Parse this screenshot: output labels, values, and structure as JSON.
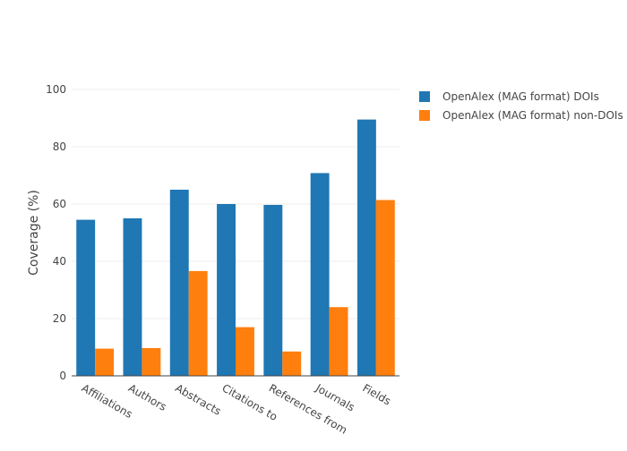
{
  "chart_data": {
    "type": "bar",
    "title": "",
    "xlabel": "",
    "ylabel": "Coverage (%)",
    "ylim": [
      0,
      100
    ],
    "yticks": [
      0,
      20,
      40,
      60,
      80,
      100
    ],
    "grid": true,
    "legend_position": "top-right",
    "categories": [
      "Affiliations",
      "Authors",
      "Abstracts",
      "Citations to",
      "References from",
      "Journals",
      "Fields"
    ],
    "series": [
      {
        "name": "OpenAlex (MAG format) DOIs",
        "color": "#1f77b4",
        "values": [
          54.5,
          55,
          65,
          60,
          59.7,
          70.8,
          89.5
        ]
      },
      {
        "name": "OpenAlex (MAG format) non-DOIs",
        "color": "#ff7f0e",
        "values": [
          9.5,
          9.7,
          36.6,
          17,
          8.5,
          24,
          61.4
        ]
      }
    ]
  }
}
